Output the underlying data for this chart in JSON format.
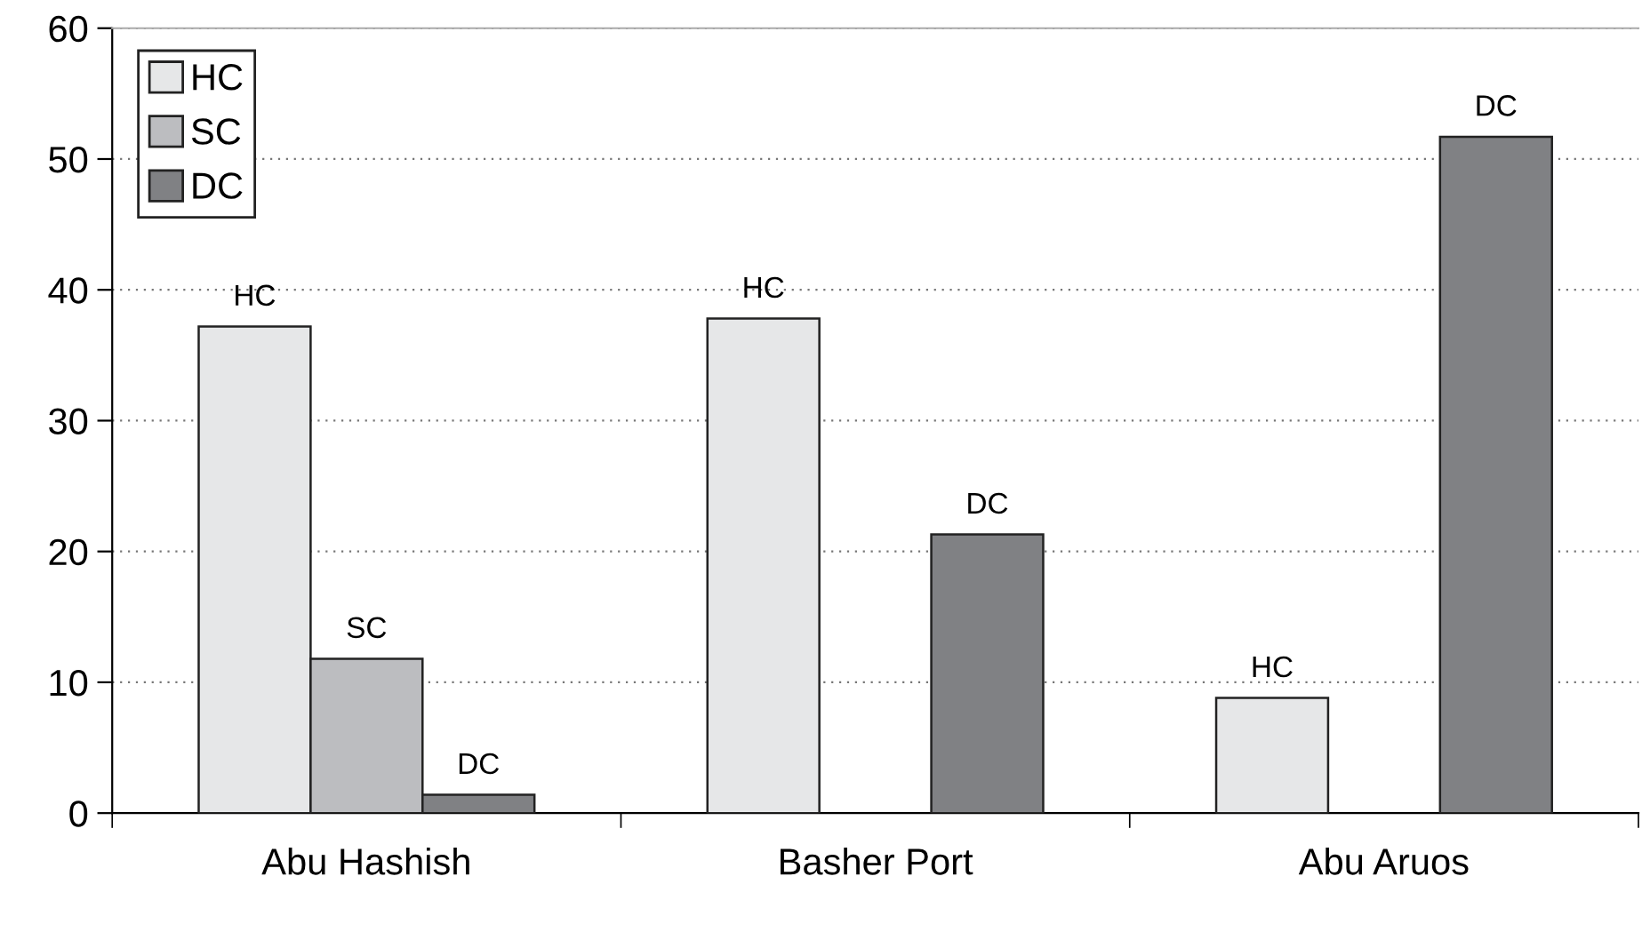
{
  "chart_data": {
    "type": "bar",
    "categories": [
      "Abu Hashish",
      "Basher Port",
      "Abu Aruos"
    ],
    "series": [
      {
        "name": "HC",
        "color": "#e6e7e8",
        "values": [
          37.2,
          37.8,
          8.8
        ],
        "value_labels": [
          "HC",
          "HC",
          "HC"
        ]
      },
      {
        "name": "SC",
        "color": "#bcbdc0",
        "values": [
          11.8,
          null,
          null
        ],
        "value_labels": [
          "SC",
          null,
          null
        ]
      },
      {
        "name": "DC",
        "color": "#808184",
        "values": [
          1.4,
          21.3,
          51.7
        ],
        "value_labels": [
          "DC",
          "DC",
          "DC"
        ]
      }
    ],
    "ylim": [
      0,
      60
    ],
    "yticks": [
      0,
      10,
      20,
      30,
      40,
      50,
      60
    ],
    "grid": "y",
    "legend": "top left"
  }
}
